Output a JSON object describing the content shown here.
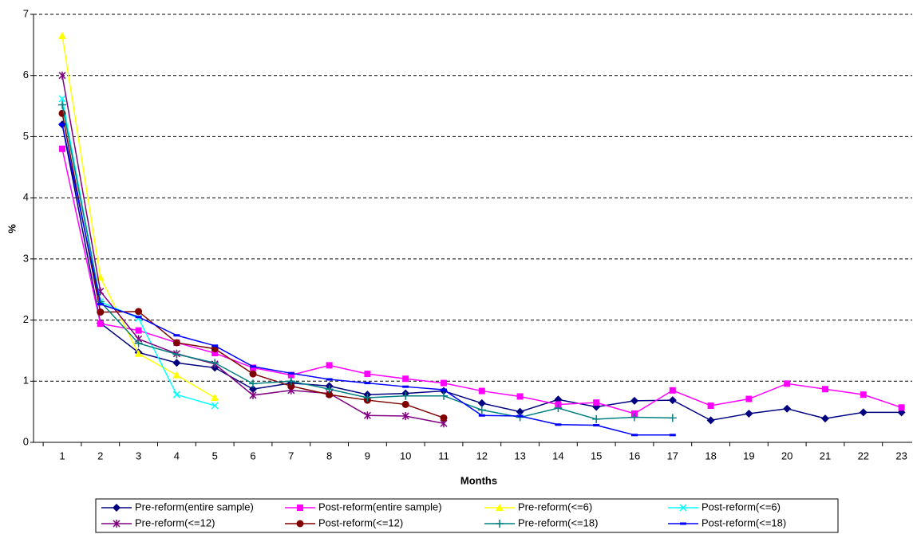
{
  "chart_data": {
    "type": "line",
    "categories": [
      "1",
      "2",
      "3",
      "4",
      "5",
      "6",
      "7",
      "8",
      "9",
      "10",
      "11",
      "12",
      "13",
      "14",
      "15",
      "16",
      "17",
      "18",
      "19",
      "20",
      "21",
      "22",
      "23"
    ],
    "x_label": "Months",
    "y_label": "%",
    "ylim": [
      0,
      7
    ],
    "yticks": [
      0,
      1,
      2,
      3,
      4,
      5,
      6,
      7
    ],
    "grid": true,
    "legend": "bottom",
    "series": [
      {
        "name": "Pre-reform(entire sample)",
        "color": "#000080",
        "marker": "diamond",
        "values": [
          5.2,
          1.95,
          1.47,
          1.3,
          1.22,
          0.87,
          0.97,
          0.92,
          0.78,
          0.8,
          0.84,
          0.64,
          0.5,
          0.7,
          0.58,
          0.68,
          0.69,
          0.36,
          0.47,
          0.55,
          0.39,
          0.49,
          0.49
        ]
      },
      {
        "name": "Post-reform(entire sample)",
        "color": "#ff00ff",
        "marker": "square",
        "values": [
          4.8,
          1.94,
          1.83,
          1.63,
          1.46,
          1.22,
          1.1,
          1.26,
          1.12,
          1.04,
          0.97,
          0.84,
          0.75,
          0.62,
          0.65,
          0.47,
          0.85,
          0.6,
          0.71,
          0.96,
          0.87,
          0.78,
          0.57
        ]
      },
      {
        "name": "Pre-reform(<=6)",
        "color": "#ffff00",
        "marker": "triangle",
        "values": [
          6.65,
          2.7,
          1.45,
          1.1,
          0.73,
          null,
          null,
          null,
          null,
          null,
          null,
          null,
          null,
          null,
          null,
          null,
          null,
          null,
          null,
          null,
          null,
          null,
          null
        ]
      },
      {
        "name": "Post-reform(<=6)",
        "color": "#00ffff",
        "marker": "x",
        "values": [
          5.62,
          2.3,
          2.03,
          0.78,
          0.6,
          null,
          null,
          null,
          null,
          null,
          null,
          null,
          null,
          null,
          null,
          null,
          null,
          null,
          null,
          null,
          null,
          null,
          null
        ]
      },
      {
        "name": "Pre-reform(<=12)",
        "color": "#800080",
        "marker": "star",
        "values": [
          6.0,
          2.47,
          1.69,
          1.45,
          1.28,
          0.77,
          0.85,
          0.8,
          0.44,
          0.43,
          0.31,
          null,
          null,
          null,
          null,
          null,
          null,
          null,
          null,
          null,
          null,
          null,
          null
        ]
      },
      {
        "name": "Post-reform(<=12)",
        "color": "#800000",
        "marker": "circle",
        "values": [
          5.38,
          2.13,
          2.14,
          1.63,
          1.53,
          1.12,
          0.92,
          0.78,
          0.69,
          0.62,
          0.4,
          null,
          null,
          null,
          null,
          null,
          null,
          null,
          null,
          null,
          null,
          null,
          null
        ]
      },
      {
        "name": "Pre-reform(<=18)",
        "color": "#008080",
        "marker": "plus",
        "values": [
          5.52,
          2.3,
          1.62,
          1.44,
          1.3,
          0.96,
          1.0,
          0.87,
          0.73,
          0.76,
          0.76,
          0.53,
          0.41,
          0.56,
          0.38,
          0.41,
          0.4,
          null,
          null,
          null,
          null,
          null,
          null
        ]
      },
      {
        "name": "Post-reform(<=18)",
        "color": "#0000ff",
        "marker": "dash",
        "values": [
          5.2,
          2.26,
          2.05,
          1.75,
          1.58,
          1.24,
          1.13,
          1.03,
          0.97,
          0.91,
          0.86,
          0.44,
          0.43,
          0.29,
          0.28,
          0.12,
          0.12,
          null,
          null,
          null,
          null,
          null,
          null
        ]
      }
    ]
  }
}
